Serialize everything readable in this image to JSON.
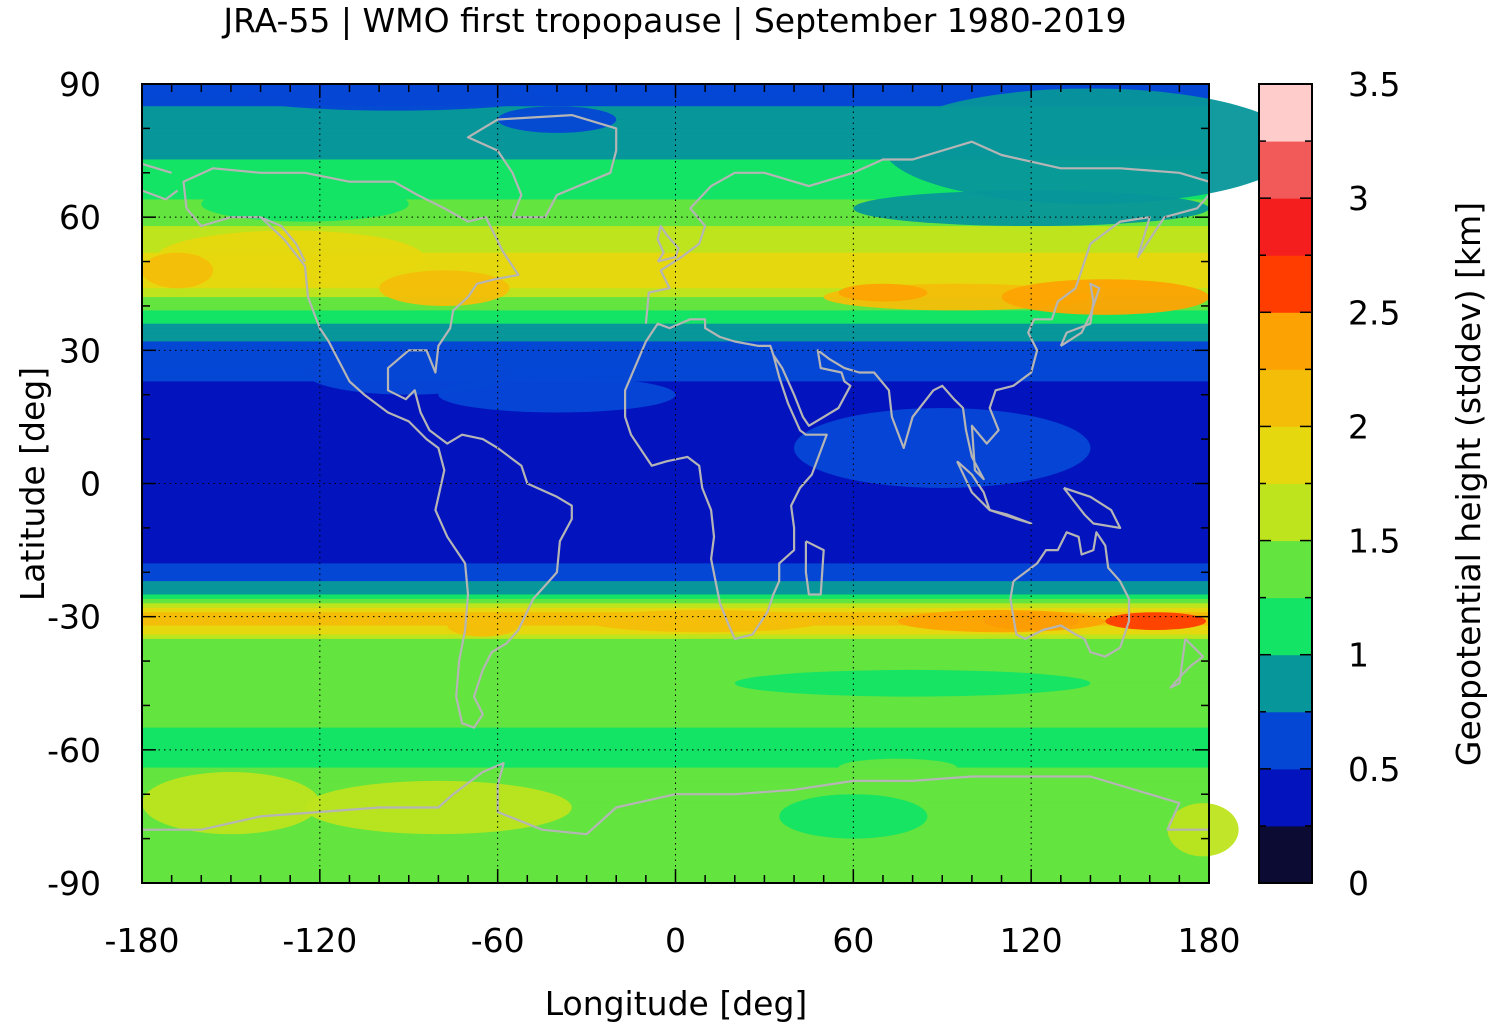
{
  "chart_data": {
    "type": "heatmap",
    "title": "JRA-55 | WMO first tropopause | September 1980-2019",
    "xlabel": "Longitude [deg]",
    "ylabel": "Latitude [deg]",
    "xlim": [
      -180,
      180
    ],
    "ylim": [
      -90,
      90
    ],
    "x_ticks": [
      "-180",
      "-120",
      "-60",
      "0",
      "60",
      "120",
      "180"
    ],
    "y_ticks": [
      "-90",
      "-60",
      "-30",
      "0",
      "30",
      "60",
      "90"
    ],
    "grid": true,
    "colorbar": {
      "label": "Geopotential height (stddev) [km]",
      "range": [
        0,
        3.5
      ],
      "tick_labels": [
        "0",
        "0.5",
        "1",
        "1.5",
        "2",
        "2.5",
        "3",
        "3.5"
      ],
      "levels": [
        0,
        0.25,
        0.5,
        0.75,
        1.0,
        1.25,
        1.5,
        1.75,
        2.0,
        2.25,
        2.5,
        2.75,
        3.0,
        3.25,
        3.5
      ],
      "colors": [
        "#0b0b33",
        "#0314be",
        "#0547d5",
        "#07969a",
        "#14e465",
        "#63e43f",
        "#bde41d",
        "#e6d80e",
        "#f4be08",
        "#fca303",
        "#ff3d00",
        "#f51e1e",
        "#f25a5a",
        "#ffcccc"
      ]
    },
    "zonal_profile": {
      "latitude": [
        90,
        82,
        75,
        68,
        62,
        56,
        50,
        45,
        40,
        35,
        30,
        25,
        20,
        10,
        0,
        -10,
        -18,
        -22,
        -25,
        -28,
        -30,
        -33,
        -36,
        -40,
        -48,
        -55,
        -62,
        -68,
        -75,
        -82,
        -90
      ],
      "stddev_km": [
        0.5,
        0.9,
        0.95,
        1.1,
        1.3,
        1.6,
        1.85,
        1.8,
        1.3,
        0.95,
        0.6,
        0.55,
        0.4,
        0.35,
        0.35,
        0.4,
        0.5,
        0.7,
        1.0,
        1.8,
        2.2,
        1.9,
        1.4,
        1.3,
        1.3,
        1.25,
        1.2,
        1.35,
        1.4,
        1.35,
        1.3
      ]
    }
  }
}
